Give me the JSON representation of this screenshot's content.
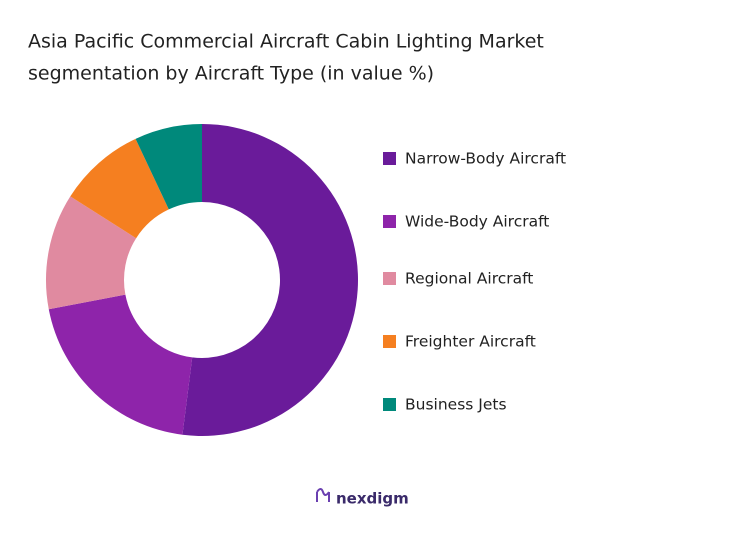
{
  "chart_data": {
    "type": "donut",
    "title": [
      "Asia Pacific Commercial Aircraft Cabin Lighting Market",
      "segmentation by Aircraft Type (in value %)"
    ],
    "categories": [
      "Narrow-Body Aircraft",
      "Wide-Body Aircraft",
      "Regional Aircraft",
      "Freighter Aircraft",
      "Business Jets"
    ],
    "values": [
      52,
      20,
      12,
      9,
      7
    ],
    "colors": [
      "#6a1b9a",
      "#8e24aa",
      "#e08aa0",
      "#f57f20",
      "#00897b"
    ],
    "legend": "right",
    "logo": "nexdigm"
  }
}
